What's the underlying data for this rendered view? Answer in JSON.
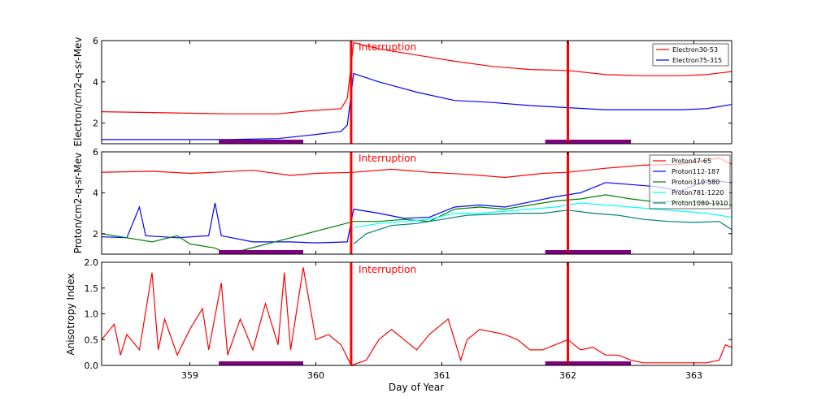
{
  "chart_data": [
    {
      "type": "line",
      "id": "electron",
      "ylabel": "Electron/cm2-q-sr-Mev",
      "ylim": [
        1,
        6
      ],
      "yticks": [
        2,
        4,
        6
      ],
      "xlim": [
        358.3,
        363.3
      ],
      "xticks": [
        359,
        360,
        361,
        362,
        363
      ],
      "interruption_label": "Interruption",
      "legend_position": "top-right",
      "series": [
        {
          "name": "Electron30-53",
          "color": "#ff0000",
          "points": [
            [
              358.3,
              2.55
            ],
            [
              358.8,
              2.5
            ],
            [
              359.3,
              2.45
            ],
            [
              359.7,
              2.45
            ],
            [
              359.95,
              2.6
            ],
            [
              360.2,
              2.7
            ],
            [
              360.25,
              3.2
            ],
            [
              360.3,
              5.9
            ],
            [
              360.5,
              5.6
            ],
            [
              360.8,
              5.3
            ],
            [
              361.1,
              5.0
            ],
            [
              361.4,
              4.75
            ],
            [
              361.7,
              4.6
            ],
            [
              362.0,
              4.55
            ],
            [
              362.3,
              4.35
            ],
            [
              362.6,
              4.3
            ],
            [
              362.9,
              4.3
            ],
            [
              363.1,
              4.35
            ],
            [
              363.3,
              4.5
            ]
          ]
        },
        {
          "name": "Electron75-315",
          "color": "#0000ff",
          "points": [
            [
              358.3,
              1.2
            ],
            [
              358.8,
              1.2
            ],
            [
              359.3,
              1.2
            ],
            [
              359.7,
              1.25
            ],
            [
              360.0,
              1.45
            ],
            [
              360.2,
              1.6
            ],
            [
              360.25,
              1.9
            ],
            [
              360.3,
              4.4
            ],
            [
              360.5,
              4.0
            ],
            [
              360.8,
              3.5
            ],
            [
              361.1,
              3.1
            ],
            [
              361.4,
              3.0
            ],
            [
              361.7,
              2.85
            ],
            [
              362.0,
              2.75
            ],
            [
              362.3,
              2.65
            ],
            [
              362.6,
              2.65
            ],
            [
              362.9,
              2.65
            ],
            [
              363.1,
              2.7
            ],
            [
              363.3,
              2.9
            ]
          ]
        }
      ]
    },
    {
      "type": "line",
      "id": "proton",
      "ylabel": "Proton/cm2-q-sr-Mev",
      "ylim": [
        1,
        6
      ],
      "yticks": [
        2,
        4,
        6
      ],
      "xlim": [
        358.3,
        363.3
      ],
      "xticks": [
        359,
        360,
        361,
        362,
        363
      ],
      "interruption_label": "Interruption",
      "legend_position": "top-right",
      "series": [
        {
          "name": "Proton47-65",
          "color": "#ff0000",
          "points": [
            [
              358.3,
              5.0
            ],
            [
              358.7,
              5.05
            ],
            [
              359.0,
              4.95
            ],
            [
              359.2,
              5.0
            ],
            [
              359.5,
              5.1
            ],
            [
              359.8,
              4.85
            ],
            [
              360.0,
              4.95
            ],
            [
              360.3,
              5.0
            ],
            [
              360.6,
              5.15
            ],
            [
              360.9,
              5.0
            ],
            [
              361.2,
              4.9
            ],
            [
              361.5,
              4.75
            ],
            [
              361.8,
              4.95
            ],
            [
              362.0,
              5.0
            ],
            [
              362.3,
              5.2
            ],
            [
              362.6,
              5.35
            ],
            [
              362.9,
              5.4
            ],
            [
              363.2,
              5.7
            ],
            [
              363.3,
              5.4
            ]
          ]
        },
        {
          "name": "Proton112-187",
          "color": "#0000ff",
          "points": [
            [
              358.3,
              1.85
            ],
            [
              358.5,
              1.8
            ],
            [
              358.6,
              3.3
            ],
            [
              358.65,
              1.9
            ],
            [
              358.9,
              1.8
            ],
            [
              359.15,
              1.9
            ],
            [
              359.2,
              3.5
            ],
            [
              359.25,
              1.9
            ],
            [
              359.5,
              1.6
            ],
            [
              359.8,
              1.6
            ],
            [
              360.0,
              1.55
            ],
            [
              360.25,
              1.6
            ],
            [
              360.3,
              3.2
            ],
            [
              360.5,
              3.0
            ],
            [
              360.7,
              2.75
            ],
            [
              360.9,
              2.8
            ],
            [
              361.1,
              3.3
            ],
            [
              361.3,
              3.4
            ],
            [
              361.5,
              3.3
            ],
            [
              361.7,
              3.55
            ],
            [
              361.9,
              3.8
            ],
            [
              362.1,
              4.0
            ],
            [
              362.3,
              4.5
            ],
            [
              362.5,
              4.4
            ],
            [
              362.7,
              4.3
            ],
            [
              362.9,
              4.1
            ],
            [
              363.1,
              4.6
            ],
            [
              363.3,
              4.5
            ]
          ]
        },
        {
          "name": "Proton310-580",
          "color": "#008000",
          "points": [
            [
              358.3,
              2.0
            ],
            [
              358.5,
              1.8
            ],
            [
              358.7,
              1.6
            ],
            [
              358.9,
              1.9
            ],
            [
              359.0,
              1.5
            ],
            [
              359.2,
              1.3
            ],
            [
              359.3,
              1.0
            ],
            [
              360.3,
              2.6
            ],
            [
              360.5,
              2.6
            ],
            [
              360.7,
              2.7
            ],
            [
              360.9,
              2.6
            ],
            [
              361.1,
              3.2
            ],
            [
              361.3,
              3.3
            ],
            [
              361.5,
              3.2
            ],
            [
              361.7,
              3.4
            ],
            [
              361.9,
              3.6
            ],
            [
              362.1,
              3.7
            ],
            [
              362.3,
              3.9
            ],
            [
              362.5,
              3.7
            ],
            [
              362.7,
              3.55
            ],
            [
              362.9,
              3.6
            ],
            [
              363.1,
              3.5
            ],
            [
              363.3,
              3.4
            ]
          ]
        },
        {
          "name": "Proton781-1220",
          "color": "#00ffff",
          "points": [
            [
              360.3,
              2.3
            ],
            [
              360.5,
              2.5
            ],
            [
              360.7,
              2.6
            ],
            [
              360.9,
              2.7
            ],
            [
              361.1,
              3.0
            ],
            [
              361.3,
              3.0
            ],
            [
              361.5,
              3.1
            ],
            [
              361.7,
              3.2
            ],
            [
              361.9,
              3.3
            ],
            [
              362.1,
              3.5
            ],
            [
              362.3,
              3.4
            ],
            [
              362.5,
              3.3
            ],
            [
              362.7,
              3.2
            ],
            [
              362.9,
              3.1
            ],
            [
              363.1,
              3.0
            ],
            [
              363.3,
              2.8
            ]
          ]
        },
        {
          "name": "Proton1080-1910",
          "color": "#008080",
          "points": [
            [
              360.3,
              1.5
            ],
            [
              360.4,
              2.0
            ],
            [
              360.6,
              2.4
            ],
            [
              360.8,
              2.5
            ],
            [
              361.0,
              2.7
            ],
            [
              361.2,
              2.9
            ],
            [
              361.4,
              2.95
            ],
            [
              361.6,
              3.0
            ],
            [
              361.8,
              3.0
            ],
            [
              362.0,
              3.15
            ],
            [
              362.2,
              3.0
            ],
            [
              362.4,
              2.9
            ],
            [
              362.6,
              2.7
            ],
            [
              362.8,
              2.6
            ],
            [
              363.0,
              2.55
            ],
            [
              363.2,
              2.6
            ],
            [
              363.3,
              2.2
            ]
          ]
        }
      ]
    },
    {
      "type": "line",
      "id": "anisotropy",
      "ylabel": "Anisotropy Index",
      "xlabel": "Day of Year",
      "ylim": [
        0,
        2
      ],
      "yticks": [
        0.0,
        0.5,
        1.0,
        1.5,
        2.0
      ],
      "ytick_labels": [
        "0.0",
        "0.5",
        "1.0",
        "1.5",
        "2.0"
      ],
      "xlim": [
        358.3,
        363.3
      ],
      "xticks": [
        359,
        360,
        361,
        362,
        363
      ],
      "interruption_label": "Interruption",
      "series": [
        {
          "name": "Anisotropy Index",
          "color": "#ff0000",
          "points": [
            [
              358.3,
              0.5
            ],
            [
              358.4,
              0.8
            ],
            [
              358.45,
              0.2
            ],
            [
              358.5,
              0.6
            ],
            [
              358.6,
              0.3
            ],
            [
              358.7,
              1.8
            ],
            [
              358.75,
              0.3
            ],
            [
              358.8,
              0.9
            ],
            [
              358.9,
              0.2
            ],
            [
              359.0,
              0.7
            ],
            [
              359.1,
              1.1
            ],
            [
              359.15,
              0.3
            ],
            [
              359.25,
              1.6
            ],
            [
              359.3,
              0.2
            ],
            [
              359.4,
              0.9
            ],
            [
              359.5,
              0.3
            ],
            [
              359.6,
              1.2
            ],
            [
              359.7,
              0.4
            ],
            [
              359.75,
              1.8
            ],
            [
              359.8,
              0.3
            ],
            [
              359.9,
              1.9
            ],
            [
              360.0,
              0.5
            ],
            [
              360.1,
              0.6
            ],
            [
              360.2,
              0.4
            ],
            [
              360.28,
              0.0
            ],
            [
              360.4,
              0.1
            ],
            [
              360.5,
              0.5
            ],
            [
              360.6,
              0.7
            ],
            [
              360.7,
              0.5
            ],
            [
              360.8,
              0.3
            ],
            [
              360.9,
              0.6
            ],
            [
              361.0,
              0.8
            ],
            [
              361.05,
              0.9
            ],
            [
              361.1,
              0.5
            ],
            [
              361.15,
              0.1
            ],
            [
              361.2,
              0.5
            ],
            [
              361.3,
              0.7
            ],
            [
              361.5,
              0.6
            ],
            [
              361.6,
              0.5
            ],
            [
              361.7,
              0.3
            ],
            [
              361.8,
              0.3
            ],
            [
              361.9,
              0.4
            ],
            [
              362.0,
              0.5
            ],
            [
              362.1,
              0.3
            ],
            [
              362.2,
              0.35
            ],
            [
              362.3,
              0.2
            ],
            [
              362.4,
              0.2
            ],
            [
              362.5,
              0.1
            ],
            [
              362.6,
              0.05
            ],
            [
              362.8,
              0.05
            ],
            [
              363.0,
              0.05
            ],
            [
              363.1,
              0.05
            ],
            [
              363.2,
              0.1
            ],
            [
              363.25,
              0.4
            ],
            [
              363.3,
              0.35
            ]
          ]
        }
      ]
    }
  ],
  "interruption_day": 360.28,
  "marker_day": 362.0,
  "data_gaps": [
    [
      359.23,
      359.9
    ],
    [
      361.82,
      362.5
    ]
  ],
  "colors": {
    "interruption": "#ff0000",
    "gap": "#800080",
    "axis": "#000000"
  }
}
